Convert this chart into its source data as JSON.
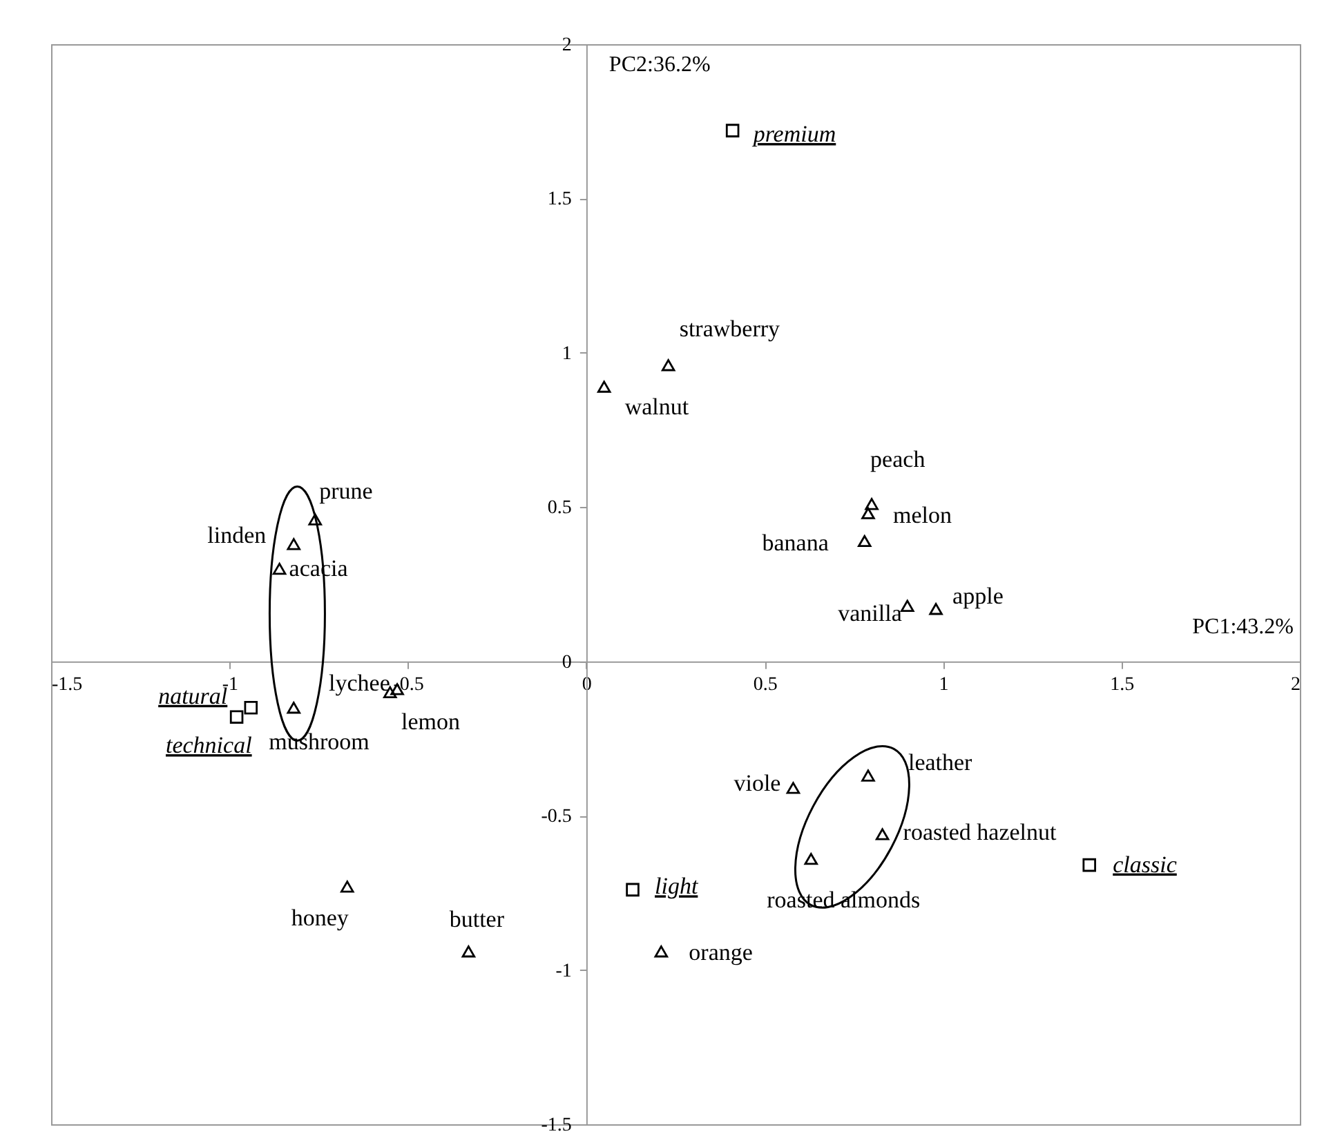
{
  "chart_data": {
    "type": "scatter",
    "xlabel": "PC1:43.2%",
    "ylabel": "PC2:36.2%",
    "xlim": [
      -1.5,
      2
    ],
    "ylim": [
      -1.5,
      2
    ],
    "xticks": [
      -1.5,
      -1,
      -0.5,
      0,
      0.5,
      1,
      1.5,
      2
    ],
    "yticks": [
      -1.5,
      -1,
      -0.5,
      0,
      0.5,
      1,
      1.5,
      2
    ],
    "grid": false,
    "series": [
      {
        "color": "#000000",
        "marker": "triangle",
        "x": [
          0.23,
          0.05,
          0.8,
          0.79,
          0.78,
          0.9,
          0.98,
          -0.76,
          -0.82,
          -0.86,
          -0.55,
          -0.53,
          -0.82,
          -0.67,
          -0.33,
          0.21,
          0.58,
          0.79,
          0.83,
          0.63
        ],
        "values": [
          0.96,
          0.89,
          0.51,
          0.48,
          0.39,
          0.18,
          0.17,
          0.46,
          0.38,
          0.3,
          -0.1,
          -0.09,
          -0.15,
          -0.73,
          -0.94,
          -0.94,
          -0.41,
          -0.37,
          -0.56,
          -0.64
        ]
      },
      {
        "color": "#000000",
        "marker": "square",
        "x": [
          0.41,
          -0.94,
          -0.98,
          0.13,
          1.41
        ],
        "values": [
          1.72,
          -0.15,
          -0.18,
          -0.74,
          -0.66
        ]
      }
    ],
    "annotations": [
      {
        "text": "strawberry",
        "x": 0.23,
        "y": 0.96
      },
      {
        "text": "walnut",
        "x": 0.05,
        "y": 0.89
      },
      {
        "text": "peach",
        "x": 0.8,
        "y": 0.51
      },
      {
        "text": "melon",
        "x": 0.79,
        "y": 0.48
      },
      {
        "text": "banana",
        "x": 0.78,
        "y": 0.39
      },
      {
        "text": "vanilla",
        "x": 0.9,
        "y": 0.18
      },
      {
        "text": "apple",
        "x": 0.98,
        "y": 0.17
      },
      {
        "text": "prune",
        "x": -0.76,
        "y": 0.46
      },
      {
        "text": "linden",
        "x": -0.82,
        "y": 0.38
      },
      {
        "text": "acacia",
        "x": -0.86,
        "y": 0.3
      },
      {
        "text": "lychee",
        "x": -0.55,
        "y": -0.1
      },
      {
        "text": "lemon",
        "x": -0.53,
        "y": -0.09
      },
      {
        "text": "mushroom",
        "x": -0.82,
        "y": -0.15
      },
      {
        "text": "honey",
        "x": -0.67,
        "y": -0.73
      },
      {
        "text": "butter",
        "x": -0.33,
        "y": -0.94
      },
      {
        "text": "orange",
        "x": 0.21,
        "y": -0.94
      },
      {
        "text": "viole",
        "x": 0.58,
        "y": -0.41
      },
      {
        "text": "leather",
        "x": 0.79,
        "y": -0.37
      },
      {
        "text": "roasted hazelnut",
        "x": 0.83,
        "y": -0.56
      },
      {
        "text": "roasted almonds",
        "x": 0.63,
        "y": -0.64
      },
      {
        "text": "premium",
        "x": 0.41,
        "y": 1.72
      },
      {
        "text": "natural",
        "x": -0.94,
        "y": -0.15
      },
      {
        "text": "technical",
        "x": -0.98,
        "y": -0.18
      },
      {
        "text": "light",
        "x": 0.13,
        "y": -0.74
      },
      {
        "text": "classic",
        "x": 1.41,
        "y": -0.66
      }
    ]
  }
}
